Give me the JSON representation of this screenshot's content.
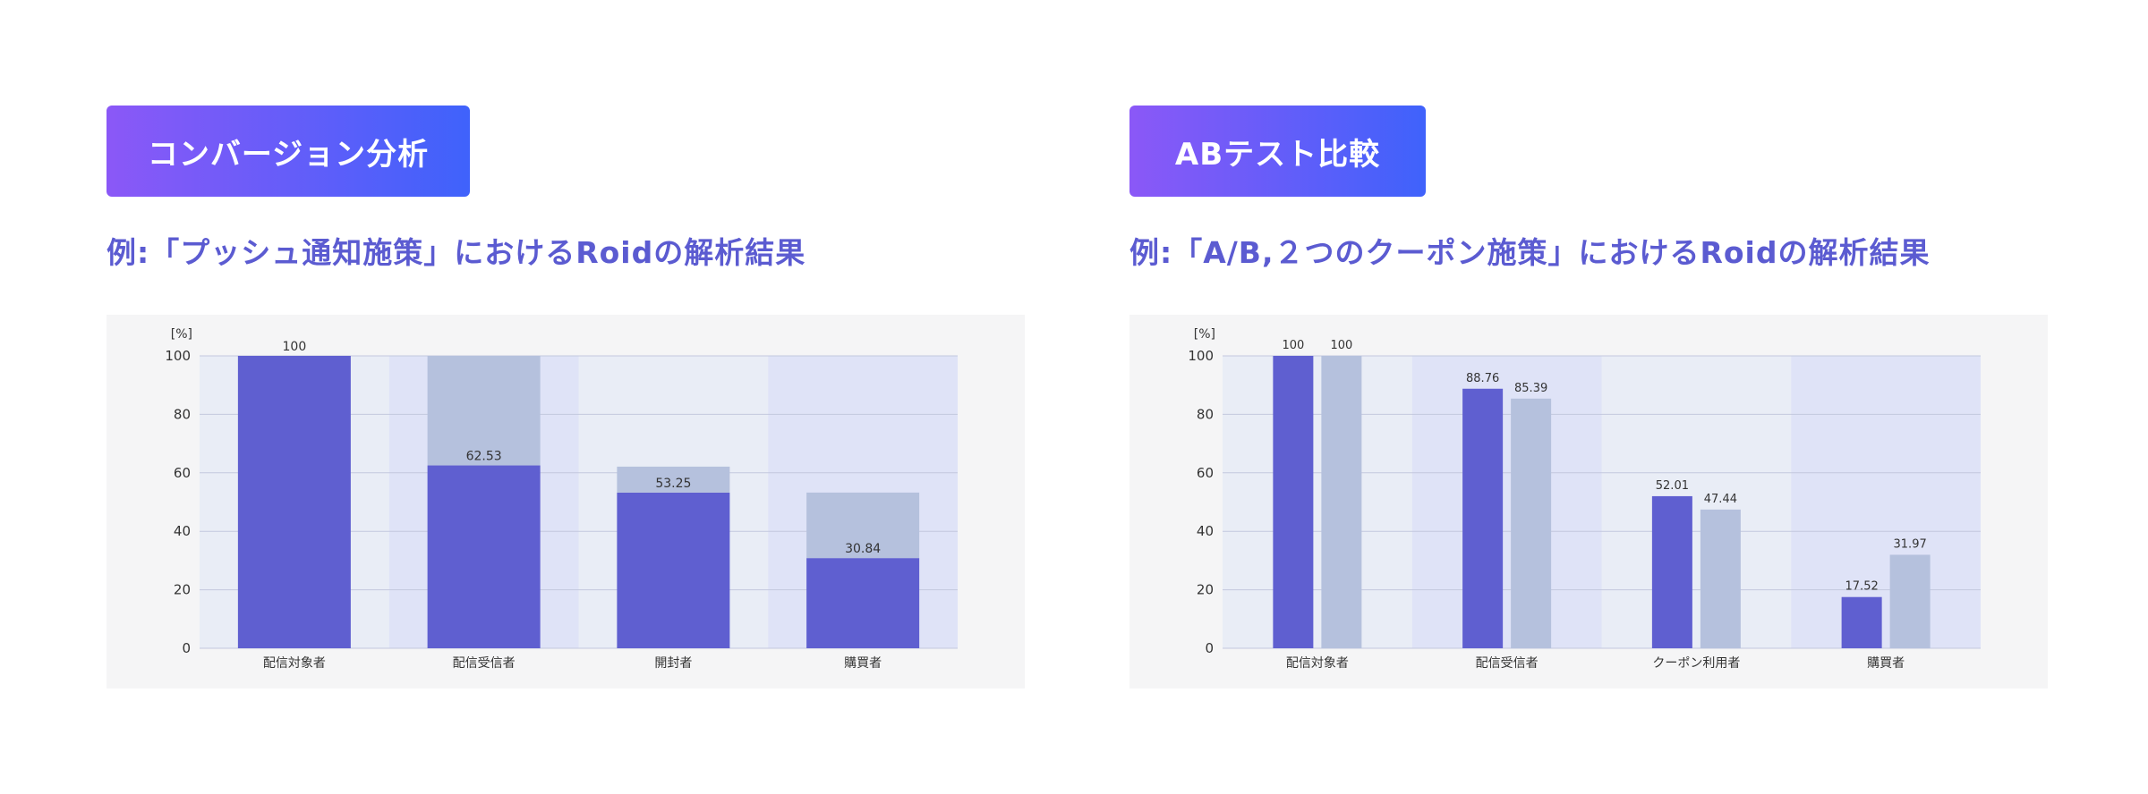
{
  "panels": {
    "conversion": {
      "badge": "コンバージョン分析",
      "subtitle": "例:「プッシュ通知施策」におけるRoidの解析結果"
    },
    "abtest": {
      "badge": "ABテスト比較",
      "subtitle": "例:「A/B,２つのクーポン施策」におけるRoidの解析結果"
    }
  },
  "colors": {
    "primary": "#5f5fd0",
    "secondary": "#b5c1dd",
    "band_light": "#e9edf6",
    "band_dark": "#dfe3f7",
    "grid": "#c3c8de",
    "badge_start": "#8b58f7",
    "badge_end": "#3f62fb",
    "subtitle": "#5b5bd1"
  },
  "chart_data": [
    {
      "type": "bar",
      "mode": "stacked",
      "unit_label": "[%]",
      "categories": [
        "配信対象者",
        "配信受信者",
        "開封者",
        "購買者"
      ],
      "series": [
        {
          "values": [
            100,
            62.53,
            53.25,
            30.84
          ]
        },
        {
          "values": [
            0,
            37.47,
            8.87,
            22.41
          ]
        }
      ],
      "value_labels": [
        "100",
        "62.53",
        "53.25",
        "30.84"
      ],
      "yticks": [
        "0",
        "20",
        "40",
        "60",
        "80",
        "100"
      ],
      "ylim": [
        0,
        100
      ],
      "grid": true
    },
    {
      "type": "bar",
      "mode": "grouped",
      "unit_label": "[%]",
      "categories": [
        "配信対象者",
        "配信受信者",
        "クーポン利用者",
        "購買者"
      ],
      "series": [
        {
          "values": [
            100,
            88.76,
            52.01,
            17.52
          ]
        },
        {
          "values": [
            100,
            85.39,
            47.44,
            31.97
          ]
        }
      ],
      "value_labels": [
        [
          "100",
          "88.76",
          "52.01",
          "17.52"
        ],
        [
          "100",
          "85.39",
          "47.44",
          "31.97"
        ]
      ],
      "yticks": [
        "0",
        "20",
        "40",
        "60",
        "80",
        "100"
      ],
      "ylim": [
        0,
        100
      ],
      "grid": true
    }
  ]
}
